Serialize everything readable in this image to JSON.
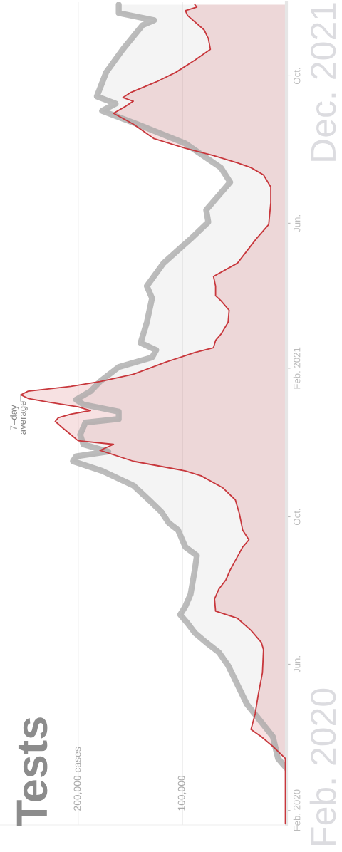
{
  "chart_data": {
    "type": "area",
    "title": "Tests",
    "orientation": "horizontal",
    "grid": "x",
    "line_style": "solid",
    "xlim": [
      275000,
      0
    ],
    "xticks": [
      {
        "value": 100000,
        "label": "100,000"
      },
      {
        "value": 200000,
        "label": "200,000 cases"
      }
    ],
    "ylim": [
      "2020-01-20",
      "2021-12-01"
    ],
    "yticks": [
      {
        "value": "2020-02-01",
        "label": "Feb. 2020"
      },
      {
        "value": "2020-06-01",
        "label": "Jun."
      },
      {
        "value": "2020-10-01",
        "label": "Oct."
      },
      {
        "value": "2021-02-01",
        "label": "Feb. 2021"
      },
      {
        "value": "2021-06-01",
        "label": "Jun."
      },
      {
        "value": "2021-10-01",
        "label": "Oct."
      }
    ],
    "annotations": [
      "Feb. 2020",
      "Dec. 2021",
      {
        "text": "7–day\naverage",
        "x": 255000,
        "y": "2021-01-10"
      }
    ],
    "series": [
      {
        "color": "#a6a6a6",
        "x": [
          "2020-03-07",
          "2020-03-15",
          "2020-04-02",
          "2020-04-14",
          "2020-04-29",
          "2020-05-15",
          "2020-05-31",
          "2020-06-11",
          "2020-06-19",
          "2020-06-27",
          "2020-07-05",
          "2020-07-12",
          "2020-07-19",
          "2020-07-29",
          "2020-08-08",
          "2020-08-18",
          "2020-08-30",
          "2020-09-06",
          "2020-09-20",
          "2020-09-26",
          "2020-10-05",
          "2020-10-15",
          "2020-10-27",
          "2020-11-08",
          "2020-11-16",
          "2020-11-20",
          "2020-11-24",
          "2020-11-30",
          "2020-12-08",
          "2020-12-18",
          "2020-12-21",
          "2020-12-27",
          "2021-01-02",
          "2021-01-06",
          "2021-01-13",
          "2021-01-21",
          "2021-02-02",
          "2021-02-10",
          "2021-02-16",
          "2021-02-22",
          "2021-03-11",
          "2021-03-31",
          "2021-04-10",
          "2021-04-29",
          "2021-05-19",
          "2021-06-02",
          "2021-06-12",
          "2021-06-24",
          "2021-07-05",
          "2021-07-17",
          "2021-08-06",
          "2021-08-22",
          "2021-09-02",
          "2021-09-08",
          "2021-09-14",
          "2021-10-04",
          "2021-10-23",
          "2021-11-12",
          "2021-11-16",
          "2021-11-22",
          "2021-11-29"
        ],
        "values": [
          0,
          8000,
          13000,
          24000,
          38000,
          47000,
          56000,
          65000,
          77000,
          88000,
          95000,
          102000,
          97000,
          92000,
          90000,
          88000,
          86000,
          97000,
          104000,
          113000,
          120000,
          132000,
          147000,
          177000,
          205000,
          202000,
          171000,
          195000,
          198000,
          193000,
          161000,
          161000,
          195000,
          202000,
          188000,
          179000,
          161000,
          129000,
          125000,
          140000,
          134000,
          129000,
          134000,
          118000,
          92000,
          75000,
          77000,
          65000,
          54000,
          63000,
          97000,
          143000,
          177000,
          164000,
          182000,
          173000,
          157000,
          138000,
          127000,
          161000,
          161000
        ]
      },
      {
        "color": "#c8373c",
        "x": [
          "2020-01-21",
          "2020-03-15",
          "2020-03-25",
          "2020-04-02",
          "2020-04-08",
          "2020-04-21",
          "2020-05-07",
          "2020-05-25",
          "2020-06-13",
          "2020-06-19",
          "2020-06-29",
          "2020-07-09",
          "2020-07-15",
          "2020-07-25",
          "2020-08-02",
          "2020-08-10",
          "2020-08-18",
          "2020-09-06",
          "2020-09-12",
          "2020-09-20",
          "2020-10-03",
          "2020-10-15",
          "2020-10-25",
          "2020-11-04",
          "2020-11-08",
          "2020-11-16",
          "2020-11-25",
          "2020-11-30",
          "2020-12-03",
          "2020-12-13",
          "2020-12-19",
          "2020-12-22",
          "2020-12-25",
          "2020-12-28",
          "2020-12-31",
          "2021-01-04",
          "2021-01-07",
          "2021-01-10",
          "2021-01-13",
          "2021-01-17",
          "2021-01-21",
          "2021-01-27",
          "2021-02-06",
          "2021-02-14",
          "2021-02-18",
          "2021-02-24",
          "2021-03-01",
          "2021-03-11",
          "2021-03-21",
          "2021-03-29",
          "2021-04-02",
          "2021-04-10",
          "2021-04-18",
          "2021-04-29",
          "2021-05-19",
          "2021-05-31",
          "2021-06-18",
          "2021-07-01",
          "2021-07-11",
          "2021-07-17",
          "2021-07-21",
          "2021-07-27",
          "2021-08-02",
          "2021-08-10",
          "2021-08-22",
          "2021-08-31",
          "2021-09-06",
          "2021-09-10",
          "2021-09-13",
          "2021-09-17",
          "2021-09-26",
          "2021-10-04",
          "2021-10-14",
          "2021-10-23",
          "2021-11-01",
          "2021-11-08",
          "2021-11-20",
          "2021-11-24",
          "2021-11-27",
          "2021-11-29"
        ],
        "values": [
          1000,
          1000,
          13000,
          24000,
          34000,
          30000,
          27000,
          23000,
          22000,
          24000,
          34000,
          47000,
          68000,
          69000,
          65000,
          58000,
          54000,
          42000,
          36000,
          42000,
          45000,
          49000,
          61000,
          82000,
          97000,
          147000,
          179000,
          166000,
          200000,
          214000,
          222000,
          219000,
          207000,
          188000,
          200000,
          229000,
          248000,
          255000,
          248000,
          207000,
          179000,
          147000,
          116000,
          88000,
          70000,
          68000,
          63000,
          56000,
          55000,
          63000,
          68000,
          68000,
          70000,
          47000,
          29000,
          17000,
          15000,
          15000,
          22000,
          34000,
          47000,
          70000,
          97000,
          127000,
          147000,
          166000,
          154000,
          147000,
          157000,
          150000,
          125000,
          106000,
          88000,
          73000,
          75000,
          79000,
          95000,
          97000,
          86000,
          88000
        ]
      }
    ]
  }
}
